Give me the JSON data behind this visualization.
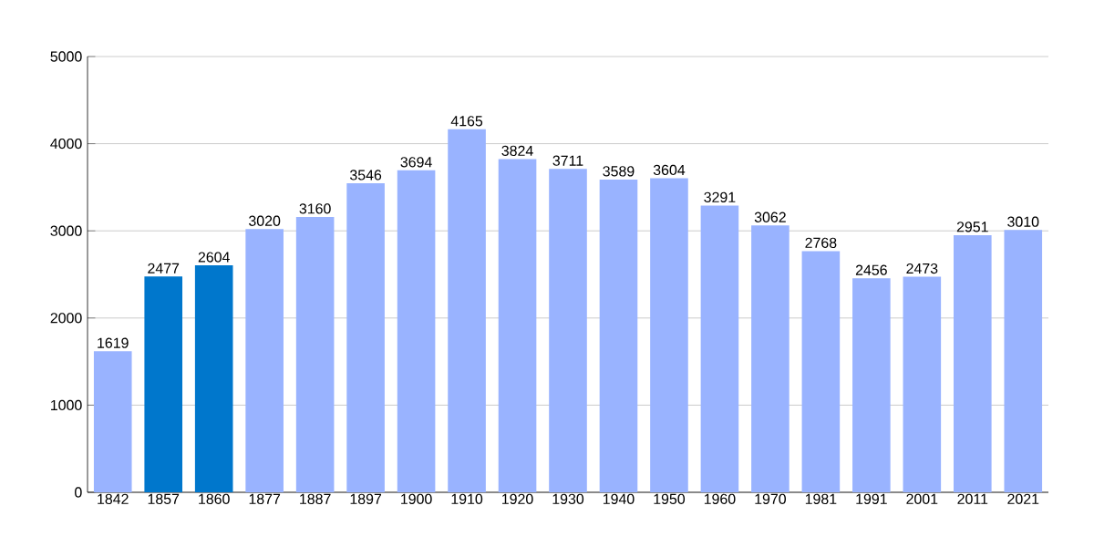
{
  "chart_data": {
    "type": "bar",
    "categories": [
      "1842",
      "1857",
      "1860",
      "1877",
      "1887",
      "1897",
      "1900",
      "1910",
      "1920",
      "1930",
      "1940",
      "1950",
      "1960",
      "1970",
      "1981",
      "1991",
      "2001",
      "2011",
      "2021"
    ],
    "values": [
      1619,
      2477,
      2604,
      3020,
      3160,
      3546,
      3694,
      4165,
      3824,
      3711,
      3589,
      3604,
      3291,
      3062,
      2768,
      2456,
      2473,
      2951,
      3010
    ],
    "colors": [
      "#99b3ff",
      "#0077cc",
      "#0077cc",
      "#99b3ff",
      "#99b3ff",
      "#99b3ff",
      "#99b3ff",
      "#99b3ff",
      "#99b3ff",
      "#99b3ff",
      "#99b3ff",
      "#99b3ff",
      "#99b3ff",
      "#99b3ff",
      "#99b3ff",
      "#99b3ff",
      "#99b3ff",
      "#99b3ff",
      "#99b3ff"
    ],
    "ylim": [
      0,
      5000
    ],
    "yticks": [
      0,
      1000,
      2000,
      3000,
      4000,
      5000
    ],
    "grid": "y",
    "data_labels": true
  }
}
